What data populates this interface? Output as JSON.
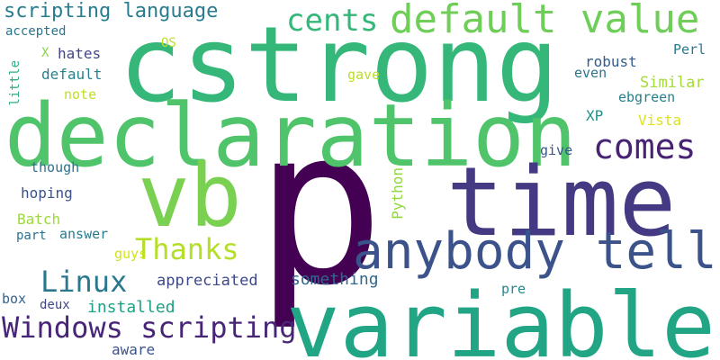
{
  "words": [
    {
      "text": "p",
      "color": "#440154"
    },
    {
      "text": "cstrong",
      "color": "#35b779"
    },
    {
      "text": "variable",
      "color": "#21a585"
    },
    {
      "text": "declaration",
      "color": "#4fc46a"
    },
    {
      "text": "time",
      "color": "#443a83"
    },
    {
      "text": "vb",
      "color": "#7ad151"
    },
    {
      "text": "anybody tell",
      "color": "#3b528b"
    },
    {
      "text": "default value",
      "color": "#6ece58"
    },
    {
      "text": "comes",
      "color": "#482374"
    },
    {
      "text": "cents",
      "color": "#35b779"
    },
    {
      "text": "Windows scripting",
      "color": "#482576"
    },
    {
      "text": "Thanks",
      "color": "#b5de2b"
    },
    {
      "text": "Linux",
      "color": "#2a788e"
    },
    {
      "text": "scripting language",
      "color": "#287c8e"
    },
    {
      "text": "installed",
      "color": "#1fa187"
    },
    {
      "text": "something",
      "color": "#31688e"
    },
    {
      "text": "appreciated",
      "color": "#3e4989"
    },
    {
      "text": "Similar",
      "color": "#a5db36"
    },
    {
      "text": "robust",
      "color": "#365c8d"
    },
    {
      "text": "Python",
      "color": "#93d741"
    },
    {
      "text": "Batch",
      "color": "#9dd93b"
    },
    {
      "text": "hoping",
      "color": "#3b528b"
    },
    {
      "text": "hates",
      "color": "#404688"
    },
    {
      "text": "default",
      "color": "#26828e"
    },
    {
      "text": "accepted",
      "color": "#2c738e"
    },
    {
      "text": "little",
      "color": "#2db27d"
    },
    {
      "text": "Perl",
      "color": "#2a788e"
    },
    {
      "text": "ebgreen",
      "color": "#277f8e"
    },
    {
      "text": "XP",
      "color": "#21918c"
    },
    {
      "text": "Vista",
      "color": "#dde318"
    },
    {
      "text": "give",
      "color": "#39568c"
    },
    {
      "text": "though",
      "color": "#2c728e"
    },
    {
      "text": "note",
      "color": "#c0df25"
    },
    {
      "text": "gave",
      "color": "#b8de29"
    },
    {
      "text": "even",
      "color": "#2b748e"
    },
    {
      "text": "OS",
      "color": "#c2df23"
    },
    {
      "text": "X",
      "color": "#8bd646"
    },
    {
      "text": "part",
      "color": "#2d708e"
    },
    {
      "text": "answer",
      "color": "#297a8e"
    },
    {
      "text": "guys",
      "color": "#d2e21b"
    },
    {
      "text": "box",
      "color": "#33638d"
    },
    {
      "text": "deux",
      "color": "#3f4788"
    },
    {
      "text": "pre",
      "color": "#23898e"
    },
    {
      "text": "aware",
      "color": "#3b528b"
    }
  ]
}
